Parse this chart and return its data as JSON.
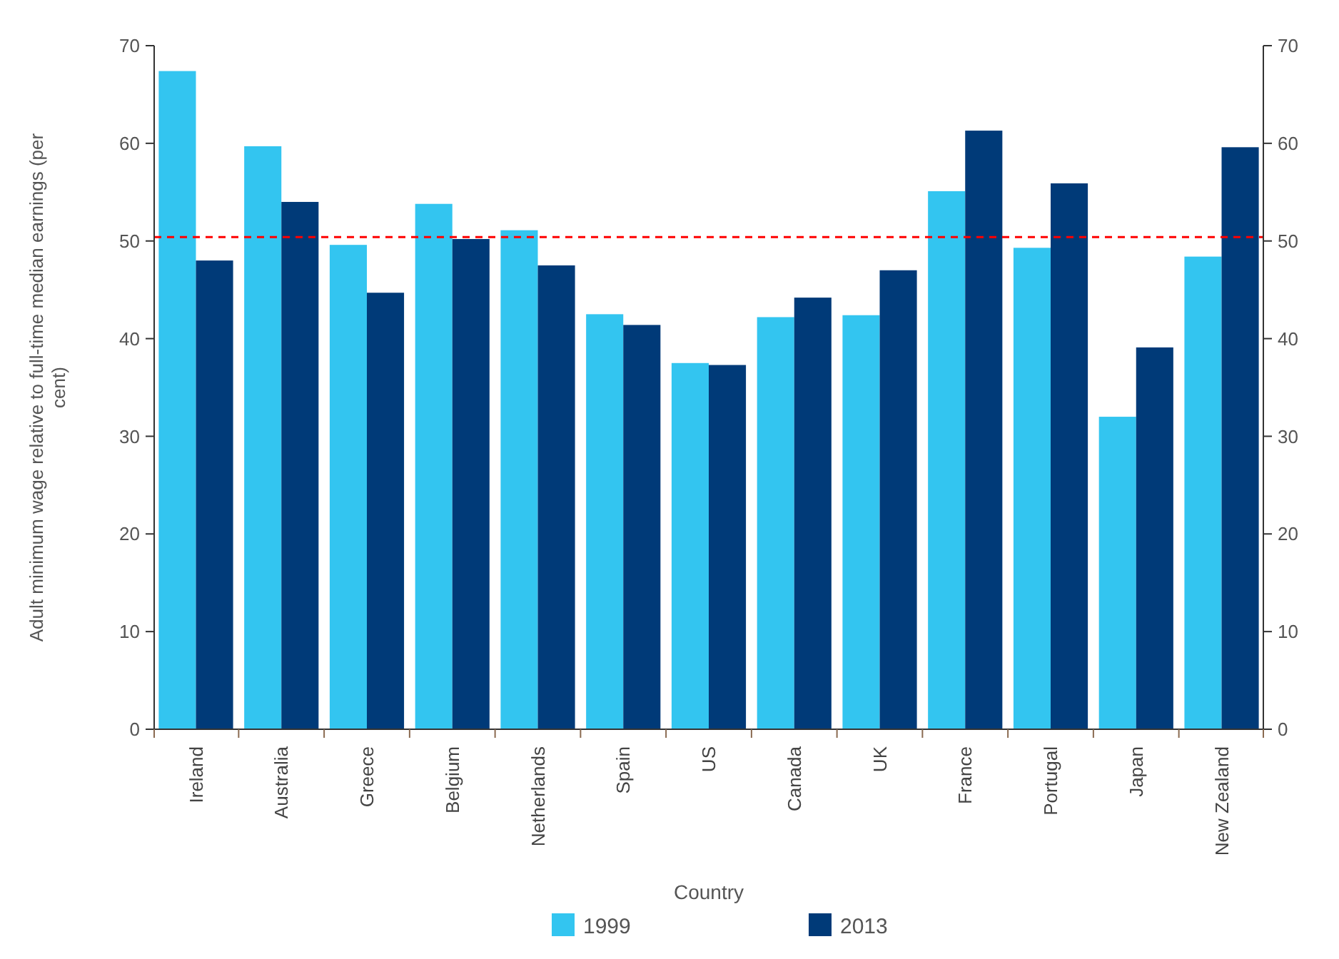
{
  "chart_data": {
    "type": "bar",
    "xlabel": "Country",
    "ylabel": "Adult minimum wage relative to full-time median earnings (per cent)",
    "categories": [
      "Ireland",
      "Australia",
      "Greece",
      "Belgium",
      "Netherlands",
      "Spain",
      "US",
      "Canada",
      "UK",
      "France",
      "Portugal",
      "Japan",
      "New Zealand"
    ],
    "series": [
      {
        "name": "1999",
        "color": "#33c5f0",
        "values": [
          67.4,
          59.7,
          49.6,
          53.8,
          51.1,
          42.5,
          37.5,
          42.2,
          42.4,
          55.1,
          49.3,
          32.0,
          48.4
        ]
      },
      {
        "name": "2013",
        "color": "#003a78",
        "values": [
          48.0,
          54.0,
          44.7,
          50.2,
          47.5,
          41.4,
          37.3,
          44.2,
          47.0,
          61.3,
          55.9,
          39.1,
          59.6
        ]
      }
    ],
    "ylim": [
      0,
      70
    ],
    "yticks": [
      0,
      10,
      20,
      30,
      40,
      50,
      60,
      70
    ],
    "y2lim": [
      0,
      70
    ],
    "y2ticks": [
      0,
      10,
      20,
      30,
      40,
      50,
      60,
      70
    ],
    "ref_lines": [
      {
        "axis": "y",
        "value": 50.4,
        "color": "#ff0000",
        "line_style": "dashed"
      }
    ],
    "grid": false,
    "legend": "bottom"
  }
}
